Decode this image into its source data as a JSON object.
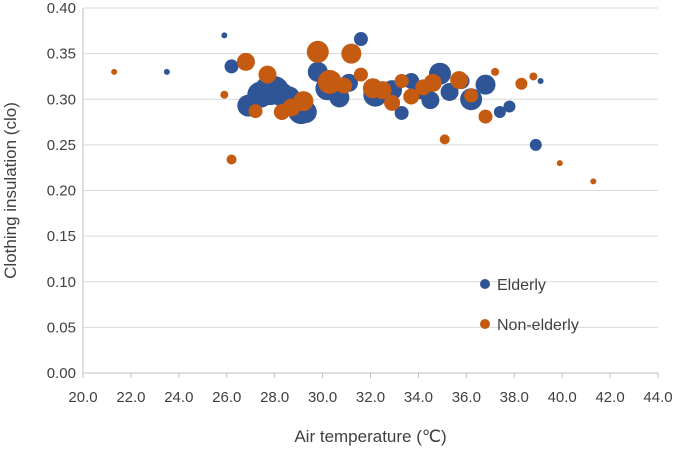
{
  "chart_data": {
    "type": "scatter",
    "title": "",
    "xlabel": "Air temperature (℃)",
    "ylabel": "Clothing insulation (clo)",
    "xlim": [
      20.0,
      44.0
    ],
    "ylim": [
      0.0,
      0.4
    ],
    "xticks": [
      "20.0",
      "22.0",
      "24.0",
      "26.0",
      "28.0",
      "30.0",
      "32.0",
      "34.0",
      "36.0",
      "38.0",
      "40.0",
      "42.0",
      "44.0"
    ],
    "yticks": [
      "0.00",
      "0.05",
      "0.10",
      "0.15",
      "0.20",
      "0.25",
      "0.30",
      "0.35",
      "0.40"
    ],
    "legend_position": "lower-right",
    "grid": "horizontal",
    "colors": {
      "Elderly": "#2f5597",
      "Non-elderly": "#c55a11"
    },
    "series": [
      {
        "name": "Elderly",
        "x": [
          23.5,
          25.9,
          26.2,
          26.9,
          27.4,
          27.8,
          28.0,
          28.3,
          28.6,
          29.1,
          29.3,
          29.8,
          30.2,
          30.7,
          31.1,
          31.6,
          32.2,
          32.9,
          33.3,
          33.7,
          34.1,
          34.5,
          34.9,
          35.3,
          35.8,
          36.2,
          36.8,
          37.4,
          37.8,
          38.9,
          39.1
        ],
        "y": [
          0.33,
          0.37,
          0.336,
          0.293,
          0.305,
          0.31,
          0.31,
          0.305,
          0.302,
          0.287,
          0.286,
          0.33,
          0.312,
          0.302,
          0.318,
          0.366,
          0.305,
          0.31,
          0.285,
          0.32,
          0.31,
          0.299,
          0.328,
          0.308,
          0.32,
          0.3,
          0.316,
          0.286,
          0.292,
          0.25,
          0.32
        ],
        "sizes": [
          3,
          3,
          7,
          11,
          13,
          15,
          14,
          12,
          11,
          13,
          11,
          10,
          12,
          10,
          9,
          7,
          12,
          10,
          7,
          8,
          9,
          9,
          11,
          9,
          8,
          11,
          10,
          6,
          6,
          6,
          3
        ]
      },
      {
        "name": "Non-elderly",
        "x": [
          21.3,
          25.9,
          26.2,
          26.8,
          27.2,
          27.7,
          28.3,
          28.7,
          29.2,
          29.8,
          30.3,
          30.9,
          31.2,
          31.6,
          32.1,
          32.5,
          32.9,
          33.3,
          33.7,
          34.2,
          34.6,
          35.1,
          35.7,
          36.2,
          36.8,
          37.2,
          38.3,
          38.8,
          39.9,
          41.3
        ],
        "y": [
          0.33,
          0.305,
          0.234,
          0.341,
          0.287,
          0.327,
          0.286,
          0.291,
          0.298,
          0.352,
          0.319,
          0.315,
          0.35,
          0.327,
          0.312,
          0.31,
          0.296,
          0.32,
          0.303,
          0.313,
          0.318,
          0.256,
          0.321,
          0.304,
          0.281,
          0.33,
          0.317,
          0.325,
          0.23,
          0.21
        ],
        "sizes": [
          3,
          4,
          5,
          9,
          7,
          9,
          8,
          9,
          10,
          11,
          12,
          8,
          10,
          7,
          10,
          9,
          8,
          7,
          8,
          8,
          9,
          5,
          9,
          7,
          7,
          4,
          6,
          4,
          3,
          3
        ]
      }
    ]
  }
}
